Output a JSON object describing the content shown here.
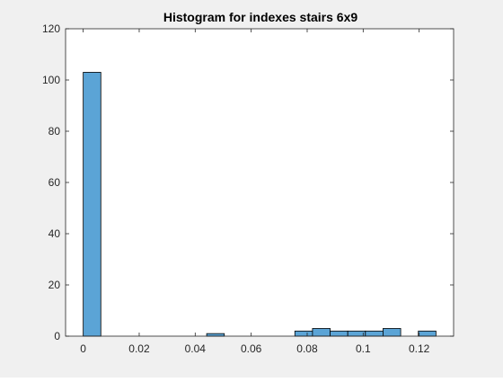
{
  "chart_data": {
    "type": "bar",
    "title": "Histogram for indexes stairs 6x9",
    "xlabel": "",
    "ylabel": "",
    "xlim": [
      -0.0063,
      0.1323
    ],
    "ylim": [
      0,
      120
    ],
    "x_ticks": [
      0,
      0.02,
      0.04,
      0.06,
      0.08,
      0.1,
      0.12
    ],
    "x_tick_labels": [
      "0",
      "0.02",
      "0.04",
      "0.06",
      "0.08",
      "0.1",
      "0.12"
    ],
    "y_ticks": [
      0,
      20,
      40,
      60,
      80,
      100,
      120
    ],
    "y_tick_labels": [
      "0",
      "20",
      "40",
      "60",
      "80",
      "100",
      "120"
    ],
    "bin_width": 0.0063,
    "bins": [
      {
        "x_start": 0.0,
        "count": 103
      },
      {
        "x_start": 0.0441,
        "count": 1
      },
      {
        "x_start": 0.0756,
        "count": 2
      },
      {
        "x_start": 0.0819,
        "count": 3
      },
      {
        "x_start": 0.0882,
        "count": 2
      },
      {
        "x_start": 0.0945,
        "count": 2
      },
      {
        "x_start": 0.1008,
        "count": 2
      },
      {
        "x_start": 0.1071,
        "count": 3
      },
      {
        "x_start": 0.1197,
        "count": 2
      }
    ],
    "grid": false,
    "legend": "none",
    "colors": {
      "bar_fill": "#5ba4d6",
      "bar_edge": "#000000",
      "axes_bg": "#ffffff",
      "figure_bg": "#f0f0f0",
      "axis": "#262626"
    }
  }
}
